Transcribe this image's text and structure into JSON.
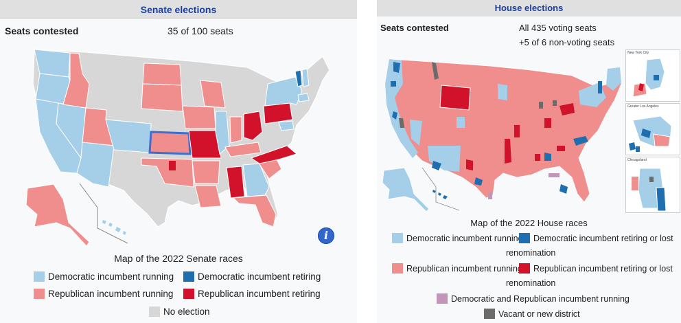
{
  "colors": {
    "dem_running": "#a5cee8",
    "dem_retiring": "#1f6eb0",
    "rep_running": "#f08d8d",
    "rep_retiring": "#d1122a",
    "no_election": "#d7d7d7",
    "both_running": "#c395b8",
    "vacant": "#6b6b6b",
    "title_blue": "#1a3fa0",
    "header_bg": "#e0e0e0",
    "panel_bg": "#f8f9fa"
  },
  "senate": {
    "title": "Senate elections",
    "seats_label": "Seats contested",
    "seats_value": "35 of 100 seats",
    "map_caption": "Map of the 2022 Senate races",
    "info_icon": "info-icon",
    "legend": [
      {
        "label": "Democratic incumbent running",
        "color": "#a5cee8"
      },
      {
        "label": "Democratic incumbent retiring",
        "color": "#1f6eb0"
      },
      {
        "label": "Republican incumbent running",
        "color": "#f08d8d"
      },
      {
        "label": "Republican incumbent retiring",
        "color": "#d1122a"
      },
      {
        "label": "No election",
        "color": "#d7d7d7"
      }
    ]
  },
  "house": {
    "title": "House elections",
    "seats_label": "Seats contested",
    "seats_value_1": "All 435 voting seats",
    "seats_value_2": "+5 of 6 non-voting seats",
    "inset_labels": [
      "New York City",
      "Greater Los Angeles",
      "Chicagoland"
    ],
    "map_caption": "Map of the 2022 House races",
    "legend": [
      {
        "label": "Democratic incumbent running",
        "color": "#a5cee8"
      },
      {
        "label": "Democratic incumbent retiring or lost",
        "color": "#1f6eb0"
      },
      {
        "label": "renomination",
        "color": ""
      },
      {
        "label": "Republican incumbent running",
        "color": "#f08d8d"
      },
      {
        "label": "Republican incumbent retiring or lost",
        "color": "#d1122a"
      },
      {
        "label": "renomination",
        "color": ""
      },
      {
        "label": "Democratic and Republican incumbent running",
        "color": "#c395b8"
      },
      {
        "label": "Vacant or new district",
        "color": "#6b6b6b"
      }
    ]
  }
}
